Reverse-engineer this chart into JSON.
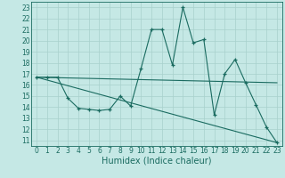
{
  "xlabel": "Humidex (Indice chaleur)",
  "bg_color": "#c5e8e5",
  "line_color": "#1a6b60",
  "grid_color": "#a8d0cc",
  "xlim": [
    -0.5,
    23.5
  ],
  "ylim": [
    10.5,
    23.5
  ],
  "xticks": [
    0,
    1,
    2,
    3,
    4,
    5,
    6,
    7,
    8,
    9,
    10,
    11,
    12,
    13,
    14,
    15,
    16,
    17,
    18,
    19,
    20,
    21,
    22,
    23
  ],
  "yticks": [
    11,
    12,
    13,
    14,
    15,
    16,
    17,
    18,
    19,
    20,
    21,
    22,
    23
  ],
  "line1_x": [
    0,
    1,
    2,
    3,
    4,
    5,
    6,
    7,
    8,
    9,
    10,
    11,
    12,
    13,
    14,
    15,
    16,
    17,
    18,
    19,
    20,
    21,
    22,
    23
  ],
  "line1_y": [
    16.7,
    16.7,
    16.7,
    14.8,
    13.9,
    13.8,
    13.7,
    13.8,
    15.0,
    14.1,
    17.5,
    21.0,
    21.0,
    17.8,
    23.0,
    19.8,
    20.1,
    13.3,
    17.0,
    18.3,
    16.2,
    14.2,
    12.2,
    10.8
  ],
  "line2_x": [
    0,
    23
  ],
  "line2_y": [
    16.7,
    16.2
  ],
  "line3_x": [
    0,
    23
  ],
  "line3_y": [
    16.7,
    10.8
  ],
  "xlabel_fontsize": 7,
  "tick_fontsize": 5.5
}
